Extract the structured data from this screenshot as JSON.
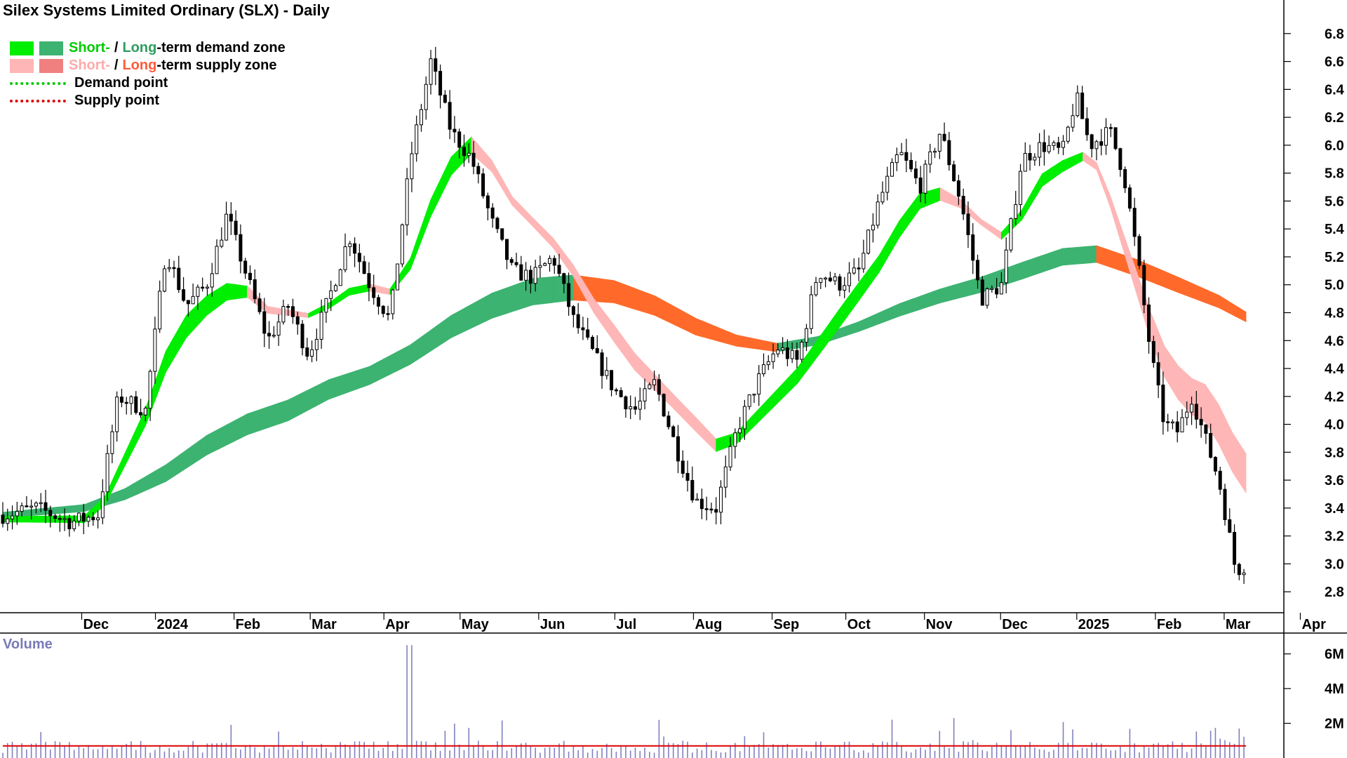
{
  "title": "Silex Systems Limited Ordinary (SLX) - Daily",
  "legend": {
    "short_word": "Short-",
    "long_word": "Long",
    "demand_suffix": "-term demand zone",
    "supply_suffix": "-term supply zone",
    "slash": "/",
    "demand_point": "Demand point",
    "supply_point": "Supply point"
  },
  "colors": {
    "short_demand": "#00ee00",
    "long_demand": "#3cb371",
    "short_supply": "#ffb6b6",
    "long_supply": "#ff6a2a",
    "demand_point": "#00cc00",
    "supply_point": "#dd0000",
    "volume_bar": "#8080c0",
    "volume_avg": "#dd0000",
    "short_text_demand": "#00cc00",
    "long_text_demand": "#2e9d5e",
    "short_text_supply": "#ffaaaa",
    "long_text_supply": "#ff5a3a"
  },
  "chart_data": {
    "type": "candlestick",
    "title": "Silex Systems Limited Ordinary (SLX) - Daily",
    "ylim": [
      2.65,
      6.95
    ],
    "yticks": [
      2.8,
      3.0,
      3.2,
      3.4,
      3.6,
      3.8,
      4.0,
      4.2,
      4.4,
      4.6,
      4.8,
      5.0,
      5.2,
      5.4,
      5.6,
      5.8,
      6.0,
      6.2,
      6.4,
      6.6,
      6.8
    ],
    "months": [
      "Dec",
      "2024",
      "Feb",
      "Mar",
      "Apr",
      "May",
      "Jun",
      "Jul",
      "Aug",
      "Sep",
      "Oct",
      "Nov",
      "Dec",
      "2025",
      "Feb",
      "Mar",
      "Apr"
    ],
    "price_path": [
      [
        0,
        3.35
      ],
      [
        10,
        3.4
      ],
      [
        20,
        3.3
      ],
      [
        28,
        3.35
      ],
      [
        34,
        4.2
      ],
      [
        42,
        4.1
      ],
      [
        48,
        5.25
      ],
      [
        54,
        4.85
      ],
      [
        60,
        5.0
      ],
      [
        66,
        5.5
      ],
      [
        72,
        5.05
      ],
      [
        78,
        4.6
      ],
      [
        84,
        4.85
      ],
      [
        90,
        4.5
      ],
      [
        96,
        4.9
      ],
      [
        102,
        5.35
      ],
      [
        108,
        5.0
      ],
      [
        114,
        4.75
      ],
      [
        120,
        5.9
      ],
      [
        126,
        6.6
      ],
      [
        132,
        6.1
      ],
      [
        138,
        5.9
      ],
      [
        144,
        5.45
      ],
      [
        150,
        5.1
      ],
      [
        156,
        5.05
      ],
      [
        162,
        5.2
      ],
      [
        168,
        4.75
      ],
      [
        174,
        4.5
      ],
      [
        180,
        4.25
      ],
      [
        186,
        4.1
      ],
      [
        192,
        4.3
      ],
      [
        198,
        3.85
      ],
      [
        204,
        3.45
      ],
      [
        210,
        3.4
      ],
      [
        216,
        3.95
      ],
      [
        222,
        4.3
      ],
      [
        228,
        4.55
      ],
      [
        234,
        4.45
      ],
      [
        240,
        5.1
      ],
      [
        246,
        5.0
      ],
      [
        252,
        5.1
      ],
      [
        258,
        5.6
      ],
      [
        264,
        5.95
      ],
      [
        270,
        5.7
      ],
      [
        276,
        6.1
      ],
      [
        282,
        5.6
      ],
      [
        288,
        4.9
      ],
      [
        294,
        5.0
      ],
      [
        300,
        5.9
      ],
      [
        306,
        6.0
      ],
      [
        312,
        5.95
      ],
      [
        316,
        6.35
      ],
      [
        320,
        6.0
      ],
      [
        326,
        6.1
      ],
      [
        330,
        5.8
      ],
      [
        334,
        5.2
      ],
      [
        338,
        4.5
      ],
      [
        342,
        4.0
      ],
      [
        346,
        3.95
      ],
      [
        350,
        4.2
      ],
      [
        354,
        3.9
      ],
      [
        358,
        3.6
      ],
      [
        360,
        3.35
      ],
      [
        363,
        2.95
      ],
      [
        366,
        3.0
      ]
    ],
    "short_zone": {
      "center": [
        [
          0,
          3.32
        ],
        [
          24,
          3.32
        ],
        [
          30,
          3.45
        ],
        [
          36,
          3.75
        ],
        [
          42,
          4.05
        ],
        [
          48,
          4.45
        ],
        [
          54,
          4.7
        ],
        [
          60,
          4.85
        ],
        [
          66,
          4.95
        ],
        [
          72,
          4.95
        ],
        [
          78,
          4.82
        ],
        [
          84,
          4.8
        ],
        [
          90,
          4.78
        ],
        [
          96,
          4.85
        ],
        [
          102,
          4.95
        ],
        [
          108,
          4.98
        ],
        [
          114,
          4.95
        ],
        [
          120,
          5.15
        ],
        [
          126,
          5.55
        ],
        [
          132,
          5.85
        ],
        [
          138,
          6.0
        ],
        [
          144,
          5.85
        ],
        [
          150,
          5.6
        ],
        [
          156,
          5.45
        ],
        [
          162,
          5.3
        ],
        [
          168,
          5.1
        ],
        [
          174,
          4.85
        ],
        [
          180,
          4.65
        ],
        [
          186,
          4.45
        ],
        [
          192,
          4.3
        ],
        [
          198,
          4.15
        ],
        [
          204,
          4.0
        ],
        [
          210,
          3.85
        ],
        [
          216,
          3.9
        ],
        [
          222,
          4.05
        ],
        [
          228,
          4.2
        ],
        [
          234,
          4.35
        ],
        [
          240,
          4.55
        ],
        [
          246,
          4.75
        ],
        [
          252,
          4.95
        ],
        [
          258,
          5.15
        ],
        [
          264,
          5.4
        ],
        [
          270,
          5.6
        ],
        [
          276,
          5.65
        ],
        [
          282,
          5.58
        ],
        [
          288,
          5.45
        ],
        [
          294,
          5.35
        ],
        [
          300,
          5.5
        ],
        [
          306,
          5.75
        ],
        [
          312,
          5.85
        ],
        [
          318,
          5.92
        ],
        [
          322,
          5.85
        ],
        [
          326,
          5.6
        ],
        [
          330,
          5.3
        ],
        [
          334,
          5.0
        ],
        [
          338,
          4.7
        ],
        [
          342,
          4.45
        ],
        [
          346,
          4.3
        ],
        [
          350,
          4.2
        ],
        [
          354,
          4.15
        ],
        [
          358,
          4.0
        ],
        [
          362,
          3.8
        ],
        [
          366,
          3.65
        ]
      ],
      "width": [
        0.04,
        0.05,
        0.06,
        0.09,
        0.12,
        0.15,
        0.16,
        0.14,
        0.12,
        0.08,
        0.05,
        0.04,
        0.03,
        0.04,
        0.05,
        0.05,
        0.04,
        0.08,
        0.12,
        0.13,
        0.12,
        0.08,
        0.06,
        0.06,
        0.07,
        0.08,
        0.1,
        0.12,
        0.12,
        0.11,
        0.1,
        0.1,
        0.09,
        0.08,
        0.09,
        0.1,
        0.11,
        0.12,
        0.13,
        0.13,
        0.12,
        0.12,
        0.11,
        0.09,
        0.06,
        0.04,
        0.05,
        0.07,
        0.09,
        0.08,
        0.06,
        0.05,
        0.08,
        0.12,
        0.16,
        0.2,
        0.22,
        0.24,
        0.26,
        0.27,
        0.28,
        0.28,
        0.28
      ]
    },
    "long_zone": {
      "center": [
        [
          0,
          3.35
        ],
        [
          24,
          3.4
        ],
        [
          36,
          3.5
        ],
        [
          48,
          3.65
        ],
        [
          60,
          3.85
        ],
        [
          72,
          4.0
        ],
        [
          84,
          4.1
        ],
        [
          96,
          4.25
        ],
        [
          108,
          4.35
        ],
        [
          120,
          4.5
        ],
        [
          132,
          4.7
        ],
        [
          144,
          4.85
        ],
        [
          156,
          4.95
        ],
        [
          168,
          4.98
        ],
        [
          180,
          4.95
        ],
        [
          192,
          4.85
        ],
        [
          204,
          4.7
        ],
        [
          216,
          4.6
        ],
        [
          228,
          4.55
        ],
        [
          240,
          4.6
        ],
        [
          252,
          4.7
        ],
        [
          264,
          4.82
        ],
        [
          276,
          4.92
        ],
        [
          288,
          5.0
        ],
        [
          300,
          5.1
        ],
        [
          312,
          5.2
        ],
        [
          322,
          5.22
        ],
        [
          334,
          5.12
        ],
        [
          346,
          5.0
        ],
        [
          358,
          4.88
        ],
        [
          366,
          4.77
        ]
      ],
      "width": [
        0.04,
        0.05,
        0.08,
        0.12,
        0.14,
        0.15,
        0.15,
        0.14,
        0.13,
        0.14,
        0.16,
        0.18,
        0.19,
        0.18,
        0.16,
        0.14,
        0.12,
        0.08,
        0.06,
        0.06,
        0.07,
        0.09,
        0.1,
        0.11,
        0.12,
        0.12,
        0.12,
        0.12,
        0.11,
        0.09,
        0.07
      ]
    },
    "volume": {
      "label": "Volume",
      "yticks": [
        "2M",
        "4M",
        "6M"
      ],
      "ytick_values": [
        2,
        4,
        6
      ],
      "ylim": [
        0,
        7.2
      ],
      "unit": "M",
      "avg": 0.7
    },
    "grid": false
  }
}
